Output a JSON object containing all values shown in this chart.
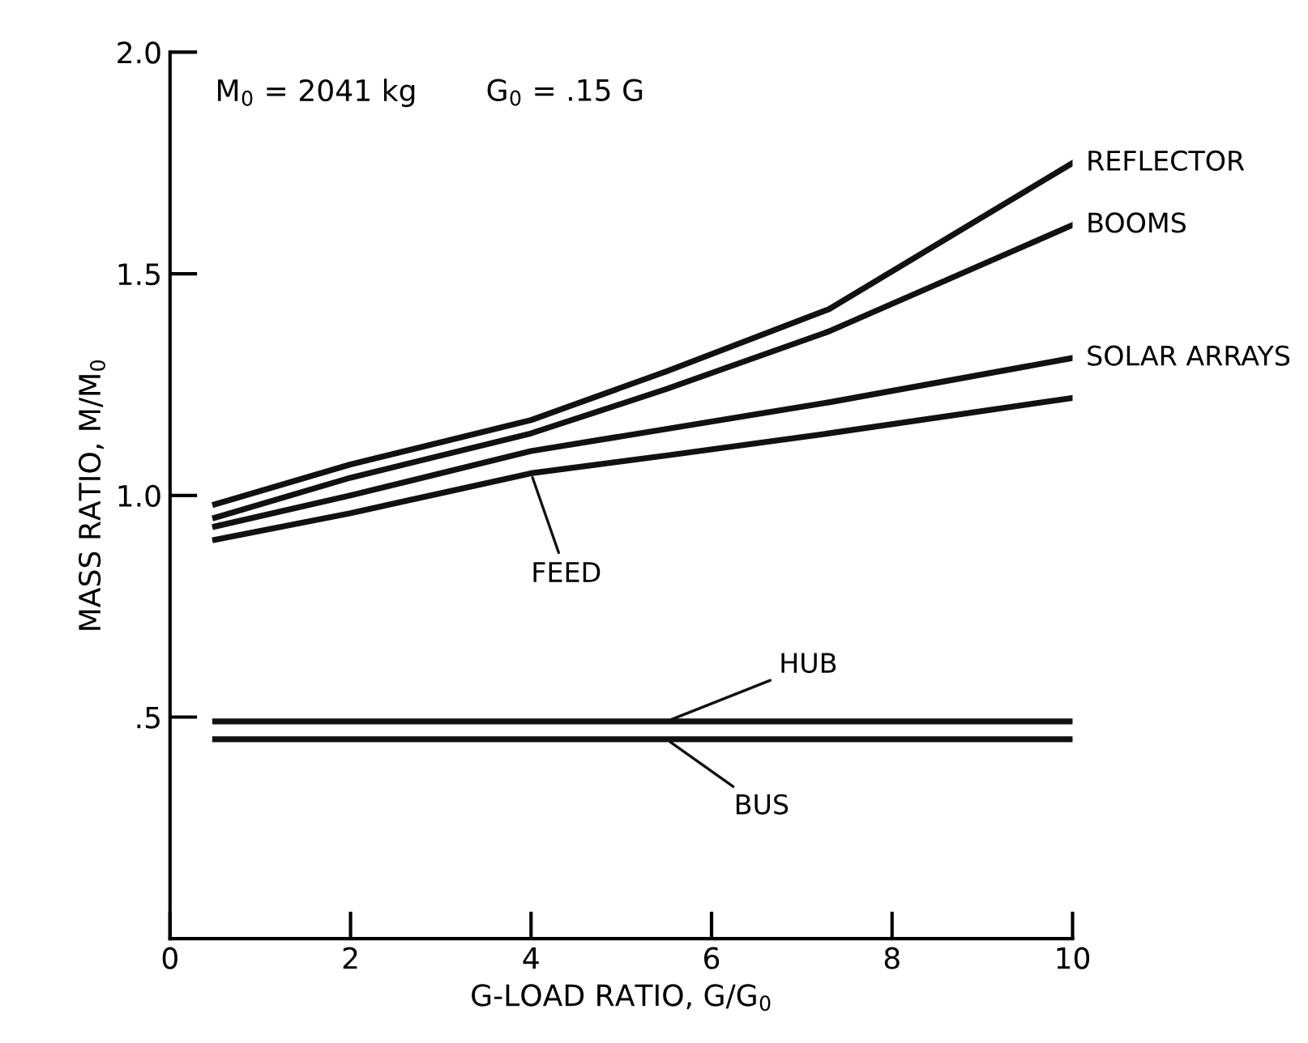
{
  "chart_data": {
    "type": "line",
    "xlabel": "G-LOAD RATIO, G/G$_{0}$",
    "ylabel": "MASS RATIO, M/M$_{0}$",
    "annotations": [
      "M$_{0}$ = 2041 kg",
      "G$_{0}$ = .15 G"
    ],
    "x": [
      0.5,
      2,
      4,
      5.5,
      7.3,
      10
    ],
    "series": [
      {
        "name": "REFLECTOR",
        "color": "#111111",
        "values": [
          0.98,
          1.07,
          1.17,
          1.28,
          1.42,
          1.75
        ]
      },
      {
        "name": "BOOMS",
        "color": "#111111",
        "values": [
          0.95,
          1.04,
          1.14,
          1.24,
          1.37,
          1.61
        ]
      },
      {
        "name": "SOLAR ARRAYS",
        "color": "#111111",
        "values": [
          0.93,
          1.0,
          1.1,
          1.15,
          1.21,
          1.31
        ]
      },
      {
        "name": "FEED",
        "color": "#111111",
        "values": [
          0.9,
          0.96,
          1.05,
          1.09,
          1.14,
          1.22
        ]
      },
      {
        "name": "HUB",
        "color": "#111111",
        "values": [
          0.49,
          0.49,
          0.49,
          0.49,
          0.49,
          0.49
        ]
      },
      {
        "name": "BUS",
        "color": "#111111",
        "values": [
          0.45,
          0.45,
          0.45,
          0.45,
          0.45,
          0.45
        ]
      }
    ],
    "xlim": [
      0,
      10
    ],
    "ylim": [
      0,
      2.0
    ],
    "xticks": [
      0,
      2,
      4,
      6,
      8,
      10
    ],
    "yticks": [
      {
        "value": 0.5,
        "label": ".5"
      },
      {
        "value": 1.0,
        "label": "1.0"
      },
      {
        "value": 1.5,
        "label": "1.5"
      },
      {
        "value": 2.0,
        "label": "2.0"
      }
    ],
    "grid": false,
    "legend": false,
    "marker": "none",
    "line_style": "solid"
  }
}
